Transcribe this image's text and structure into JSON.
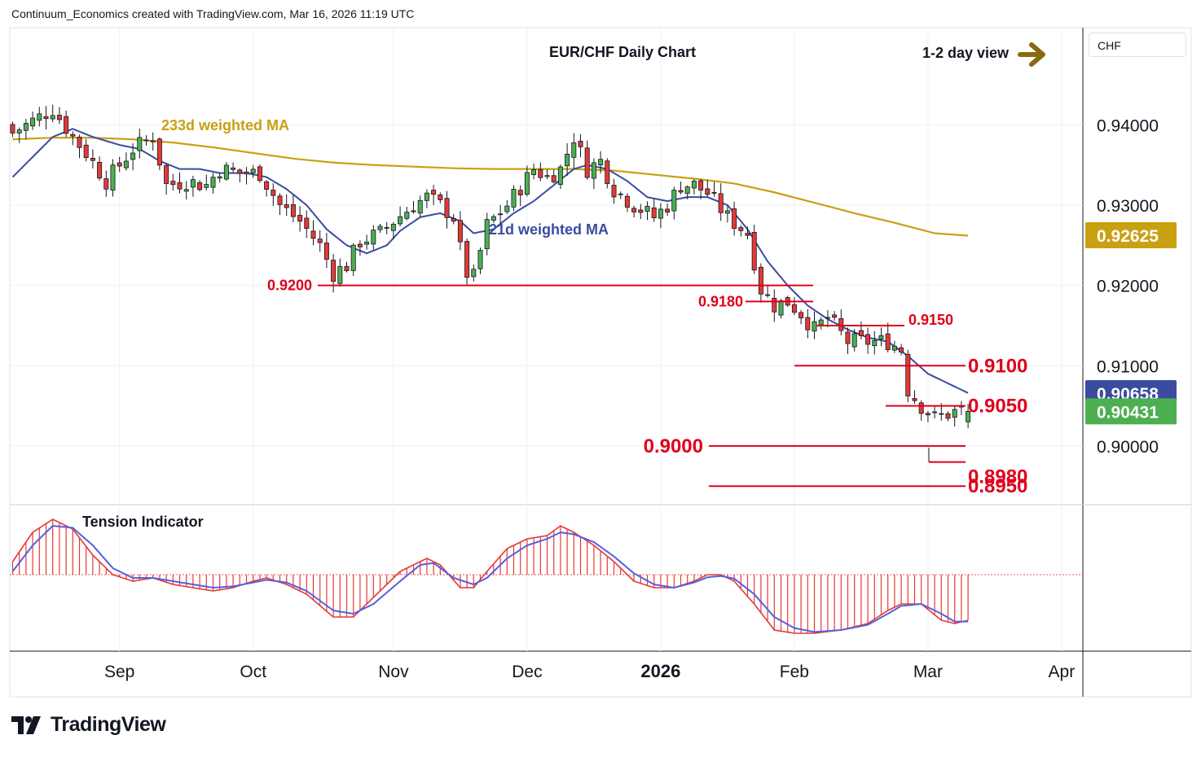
{
  "header": {
    "attribution": "Continuum_Economics created with TradingView.com, Mar 16, 2026 11:19 UTC"
  },
  "footer": {
    "brand": "TradingView"
  },
  "colors": {
    "up": "#4caf50",
    "down": "#e53935",
    "wick": "#131722",
    "ma21": "#3a4ba0",
    "ma233": "#c9a012",
    "level": "#e0001a",
    "tension_line": "#5560e0",
    "arrow": "#8a6a10",
    "grid": "#eef0f3"
  },
  "chart_data": [
    {
      "type": "candlestick",
      "title": "EUR/CHF Daily Chart",
      "view_label": "1-2 day view",
      "currency": "CHF",
      "y_axis_ticks": [
        "0.94000",
        "0.93000",
        "0.92000",
        "0.91000",
        "0.90000"
      ],
      "ylim": [
        0.8935,
        0.9515
      ],
      "x_axis_ticks": [
        "Sep",
        "Oct",
        "Nov",
        "Dec",
        "2026",
        "Feb",
        "Mar",
        "Apr"
      ],
      "price_badges": [
        {
          "value": "0.92625",
          "series": "233d weighted MA",
          "color": "#c9a012"
        },
        {
          "value": "0.90658",
          "series": "21d weighted MA",
          "color": "#3a4ba0"
        },
        {
          "value": "0.90431",
          "series": "EUR/CHF",
          "color": "#4caf50"
        }
      ],
      "ma_labels": [
        {
          "text": "233d weighted MA",
          "color": "#c9a012"
        },
        {
          "text": "21d weighted MA",
          "color": "#3a4ba0"
        }
      ],
      "levels": [
        {
          "label": "0.9200",
          "value": 0.92,
          "from_day": 47,
          "to_day": 123
        },
        {
          "label": "0.9180",
          "value": 0.918,
          "from_day": 112,
          "to_day": 123
        },
        {
          "label": "0.9150",
          "value": 0.915,
          "from_day": 122,
          "to_day": 135
        },
        {
          "label": "0.9100",
          "value": 0.91,
          "from_day": 120,
          "to_day": 145
        },
        {
          "label": "0.9050",
          "value": 0.905,
          "from_day": 134,
          "to_day": 145
        },
        {
          "label": "0.9000",
          "value": 0.9,
          "from_day": 107,
          "to_day": 145
        },
        {
          "label": "0.8980",
          "value": 0.898,
          "from_day": 140,
          "to_day": 145
        },
        {
          "label": "0.8950",
          "value": 0.895,
          "from_day": 107,
          "to_day": 145
        }
      ],
      "close_anchors": [
        [
          0,
          0.939
        ],
        [
          3,
          0.9405
        ],
        [
          6,
          0.942
        ],
        [
          9,
          0.9385
        ],
        [
          11,
          0.9365
        ],
        [
          14,
          0.933
        ],
        [
          18,
          0.937
        ],
        [
          21,
          0.9385
        ],
        [
          23,
          0.9325
        ],
        [
          26,
          0.933
        ],
        [
          29,
          0.9325
        ],
        [
          31,
          0.9345
        ],
        [
          34,
          0.934
        ],
        [
          37,
          0.934
        ],
        [
          40,
          0.93
        ],
        [
          43,
          0.928
        ],
        [
          46,
          0.925
        ],
        [
          48,
          0.9215
        ],
        [
          50,
          0.9225
        ],
        [
          52,
          0.9255
        ],
        [
          55,
          0.9265
        ],
        [
          57,
          0.928
        ],
        [
          60,
          0.93
        ],
        [
          62,
          0.931
        ],
        [
          64,
          0.93
        ],
        [
          66,
          0.9285
        ],
        [
          67,
          0.9245
        ],
        [
          68,
          0.9215
        ],
        [
          69,
          0.921
        ],
        [
          71,
          0.9275
        ],
        [
          74,
          0.93
        ],
        [
          78,
          0.9345
        ],
        [
          80,
          0.9335
        ],
        [
          82,
          0.9345
        ],
        [
          84,
          0.9385
        ],
        [
          86,
          0.9345
        ],
        [
          88,
          0.9355
        ],
        [
          90,
          0.932
        ],
        [
          93,
          0.93
        ],
        [
          96,
          0.9285
        ],
        [
          98,
          0.93
        ],
        [
          100,
          0.9325
        ],
        [
          102,
          0.9325
        ],
        [
          104,
          0.9315
        ],
        [
          107,
          0.9285
        ],
        [
          110,
          0.9265
        ],
        [
          112,
          0.9195
        ],
        [
          114,
          0.9175
        ],
        [
          116,
          0.918
        ],
        [
          118,
          0.9165
        ],
        [
          120,
          0.9145
        ],
        [
          122,
          0.916
        ],
        [
          125,
          0.913
        ],
        [
          128,
          0.913
        ],
        [
          131,
          0.913
        ],
        [
          133,
          0.912
        ],
        [
          134,
          0.907
        ],
        [
          136,
          0.905
        ],
        [
          138,
          0.9035
        ],
        [
          140,
          0.904
        ],
        [
          142,
          0.9045
        ],
        [
          143,
          0.9043
        ]
      ],
      "ohlc_last": {
        "open": 0.903,
        "high": 0.9052,
        "low": 0.9022,
        "close": 0.90431
      },
      "ma21_anchors": [
        [
          0,
          0.9335
        ],
        [
          3,
          0.936
        ],
        [
          6,
          0.9385
        ],
        [
          9,
          0.9395
        ],
        [
          12,
          0.9385
        ],
        [
          16,
          0.9375
        ],
        [
          19,
          0.937
        ],
        [
          22,
          0.9355
        ],
        [
          25,
          0.9345
        ],
        [
          28,
          0.9345
        ],
        [
          31,
          0.934
        ],
        [
          35,
          0.934
        ],
        [
          38,
          0.9335
        ],
        [
          41,
          0.932
        ],
        [
          44,
          0.93
        ],
        [
          47,
          0.927
        ],
        [
          50,
          0.925
        ],
        [
          53,
          0.924
        ],
        [
          56,
          0.925
        ],
        [
          58,
          0.9268
        ],
        [
          61,
          0.9285
        ],
        [
          64,
          0.929
        ],
        [
          67,
          0.928
        ],
        [
          69,
          0.9265
        ],
        [
          72,
          0.927
        ],
        [
          75,
          0.929
        ],
        [
          78,
          0.9305
        ],
        [
          81,
          0.9325
        ],
        [
          84,
          0.9345
        ],
        [
          86,
          0.935
        ],
        [
          89,
          0.9345
        ],
        [
          92,
          0.933
        ],
        [
          95,
          0.931
        ],
        [
          98,
          0.9305
        ],
        [
          101,
          0.931
        ],
        [
          104,
          0.931
        ],
        [
          107,
          0.93
        ],
        [
          110,
          0.927
        ],
        [
          113,
          0.923
        ],
        [
          116,
          0.92
        ],
        [
          119,
          0.9175
        ],
        [
          122,
          0.9158
        ],
        [
          125,
          0.9145
        ],
        [
          128,
          0.9135
        ],
        [
          131,
          0.913
        ],
        [
          134,
          0.9112
        ],
        [
          137,
          0.909
        ],
        [
          140,
          0.9078
        ],
        [
          143,
          0.9066
        ]
      ],
      "ma233_anchors": [
        [
          0,
          0.9382
        ],
        [
          6,
          0.9384
        ],
        [
          12,
          0.9384
        ],
        [
          18,
          0.9382
        ],
        [
          24,
          0.9378
        ],
        [
          30,
          0.9372
        ],
        [
          36,
          0.9365
        ],
        [
          42,
          0.9358
        ],
        [
          48,
          0.9353
        ],
        [
          54,
          0.935
        ],
        [
          60,
          0.9348
        ],
        [
          66,
          0.9346
        ],
        [
          72,
          0.9345
        ],
        [
          78,
          0.9345
        ],
        [
          84,
          0.9345
        ],
        [
          90,
          0.9343
        ],
        [
          96,
          0.9338
        ],
        [
          102,
          0.9333
        ],
        [
          108,
          0.9327
        ],
        [
          114,
          0.9316
        ],
        [
          120,
          0.9303
        ],
        [
          126,
          0.929
        ],
        [
          132,
          0.9278
        ],
        [
          138,
          0.9265
        ],
        [
          143,
          0.9262
        ]
      ],
      "days_total": 144,
      "x_tick_days": [
        16,
        36,
        57,
        77,
        97,
        117,
        137,
        157
      ]
    },
    {
      "type": "histogram-oscillator",
      "title": "Tension Indicator",
      "ylim": [
        -1.0,
        1.0
      ],
      "histogram_anchors": [
        [
          0,
          0.2
        ],
        [
          3,
          0.65
        ],
        [
          6,
          0.85
        ],
        [
          9,
          0.7
        ],
        [
          12,
          0.3
        ],
        [
          15,
          0.0
        ],
        [
          18,
          -0.1
        ],
        [
          21,
          -0.05
        ],
        [
          24,
          -0.15
        ],
        [
          27,
          -0.2
        ],
        [
          30,
          -0.25
        ],
        [
          33,
          -0.2
        ],
        [
          36,
          -0.1
        ],
        [
          38,
          -0.05
        ],
        [
          41,
          -0.15
        ],
        [
          44,
          -0.3
        ],
        [
          48,
          -0.65
        ],
        [
          51,
          -0.65
        ],
        [
          54,
          -0.35
        ],
        [
          58,
          0.05
        ],
        [
          62,
          0.25
        ],
        [
          64,
          0.15
        ],
        [
          67,
          -0.2
        ],
        [
          69,
          -0.2
        ],
        [
          71,
          0.05
        ],
        [
          74,
          0.4
        ],
        [
          77,
          0.55
        ],
        [
          80,
          0.6
        ],
        [
          82,
          0.75
        ],
        [
          84,
          0.65
        ],
        [
          87,
          0.45
        ],
        [
          90,
          0.2
        ],
        [
          93,
          -0.1
        ],
        [
          96,
          -0.2
        ],
        [
          99,
          -0.2
        ],
        [
          102,
          -0.1
        ],
        [
          104,
          0.0
        ],
        [
          106,
          0.0
        ],
        [
          108,
          -0.1
        ],
        [
          111,
          -0.45
        ],
        [
          114,
          -0.85
        ],
        [
          117,
          -0.9
        ],
        [
          120,
          -0.9
        ],
        [
          124,
          -0.85
        ],
        [
          128,
          -0.75
        ],
        [
          131,
          -0.55
        ],
        [
          133,
          -0.45
        ],
        [
          136,
          -0.45
        ],
        [
          139,
          -0.7
        ],
        [
          141,
          -0.75
        ],
        [
          143,
          -0.7
        ]
      ],
      "signal_anchors": [
        [
          0,
          0.05
        ],
        [
          3,
          0.45
        ],
        [
          6,
          0.75
        ],
        [
          9,
          0.72
        ],
        [
          12,
          0.45
        ],
        [
          15,
          0.1
        ],
        [
          18,
          -0.05
        ],
        [
          21,
          -0.05
        ],
        [
          24,
          -0.1
        ],
        [
          27,
          -0.15
        ],
        [
          30,
          -0.2
        ],
        [
          33,
          -0.18
        ],
        [
          36,
          -0.12
        ],
        [
          38,
          -0.08
        ],
        [
          41,
          -0.12
        ],
        [
          44,
          -0.25
        ],
        [
          48,
          -0.55
        ],
        [
          51,
          -0.6
        ],
        [
          54,
          -0.45
        ],
        [
          58,
          -0.1
        ],
        [
          61,
          0.15
        ],
        [
          63,
          0.18
        ],
        [
          66,
          -0.05
        ],
        [
          69,
          -0.15
        ],
        [
          71,
          -0.05
        ],
        [
          74,
          0.25
        ],
        [
          77,
          0.45
        ],
        [
          80,
          0.55
        ],
        [
          82,
          0.65
        ],
        [
          84,
          0.62
        ],
        [
          87,
          0.5
        ],
        [
          90,
          0.28
        ],
        [
          93,
          0.02
        ],
        [
          96,
          -0.15
        ],
        [
          99,
          -0.2
        ],
        [
          102,
          -0.12
        ],
        [
          104,
          -0.04
        ],
        [
          106,
          -0.02
        ],
        [
          108,
          -0.06
        ],
        [
          111,
          -0.3
        ],
        [
          114,
          -0.65
        ],
        [
          117,
          -0.82
        ],
        [
          120,
          -0.88
        ],
        [
          124,
          -0.85
        ],
        [
          128,
          -0.77
        ],
        [
          131,
          -0.6
        ],
        [
          133,
          -0.48
        ],
        [
          136,
          -0.45
        ],
        [
          139,
          -0.6
        ],
        [
          141,
          -0.72
        ],
        [
          143,
          -0.72
        ]
      ]
    }
  ]
}
